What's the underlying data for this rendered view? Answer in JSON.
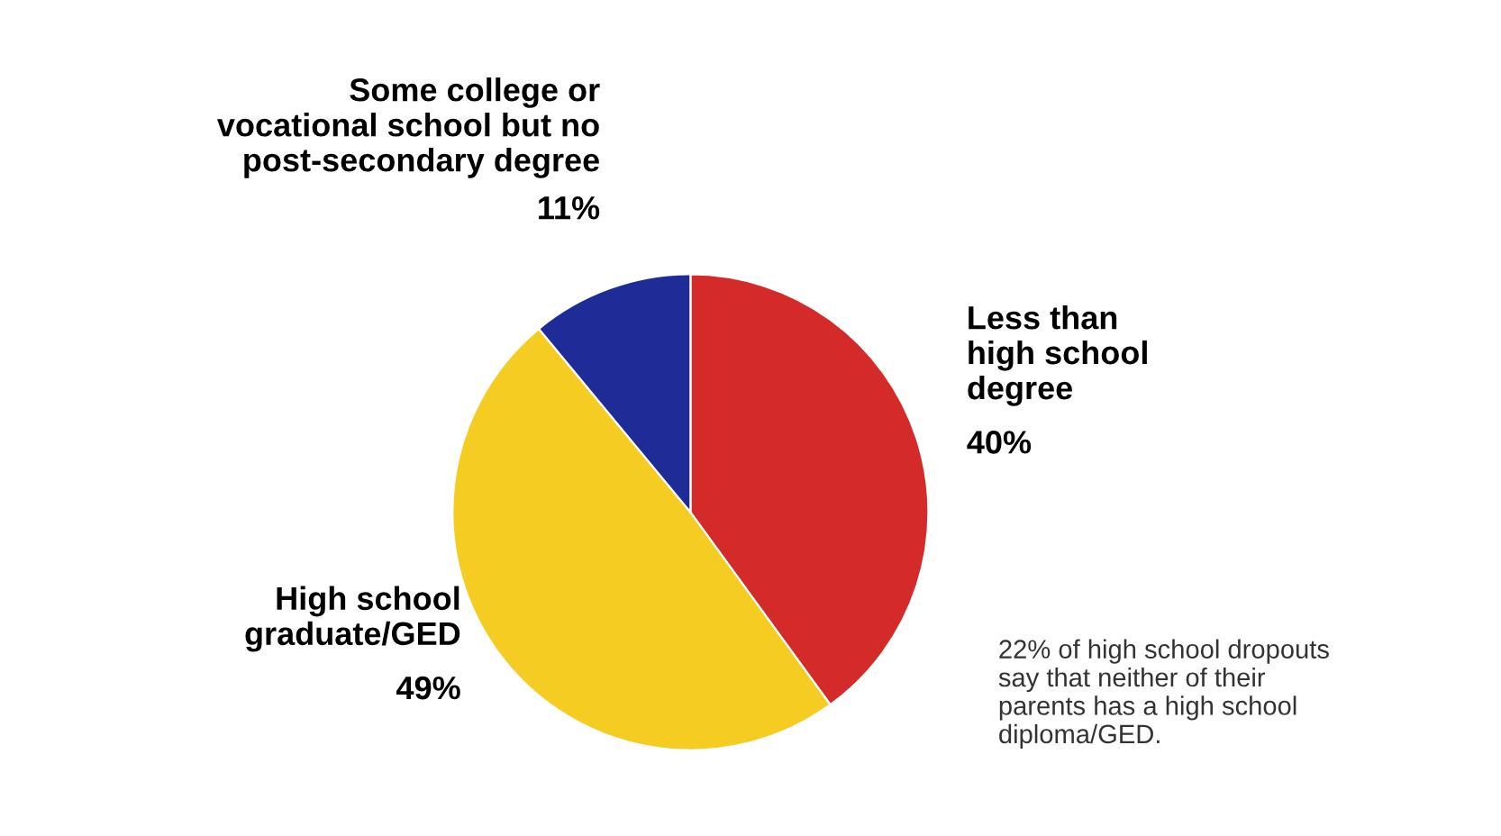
{
  "chart_data": {
    "type": "pie",
    "categories": [
      "Less than\nhigh school\ndegree",
      "High school\ngraduate/GED",
      "Some college or\nvocational school but no\npost-secondary degree"
    ],
    "values": [
      40,
      49,
      11
    ],
    "value_labels": [
      "40%",
      "49%",
      "11%"
    ],
    "colors": [
      "#d42a2a",
      "#f4cc22",
      "#1f2c98"
    ],
    "annotations": [
      "22% of high school dropouts\nsay that neither of their\nparents has a high school\ndiploma/GED."
    ]
  }
}
